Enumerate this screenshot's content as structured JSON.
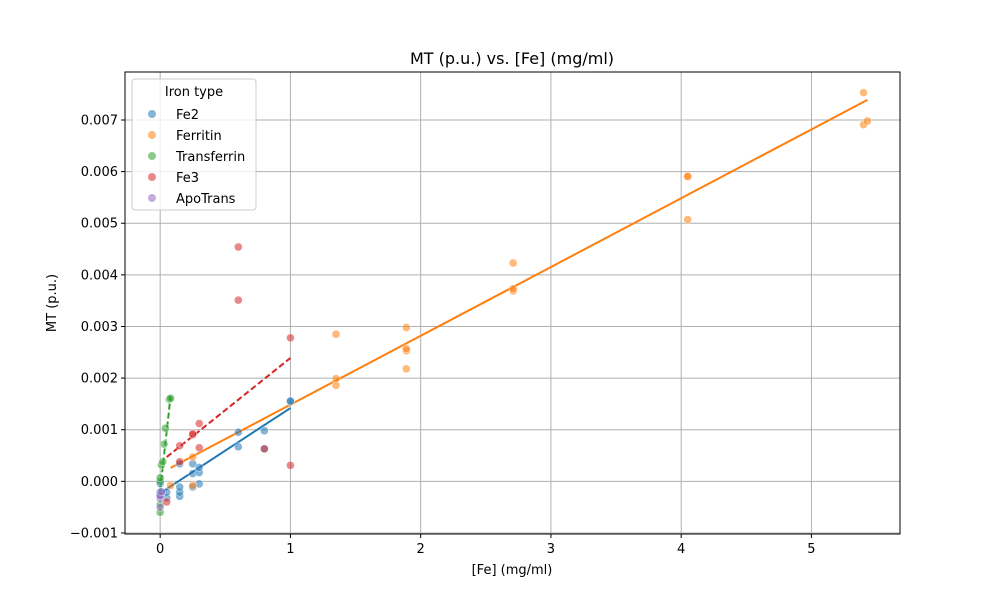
{
  "chart_data": {
    "type": "scatter",
    "title": "MT (p.u.) vs. [Fe] (mg/ml)",
    "xlabel": "[Fe] (mg/ml)",
    "ylabel": "MT (p.u.)",
    "xlim": [
      -0.27,
      5.68
    ],
    "ylim": [
      -0.00102,
      0.00793
    ],
    "xticks": [
      0,
      1,
      2,
      3,
      4,
      5
    ],
    "xtick_labels": [
      "0",
      "1",
      "2",
      "3",
      "4",
      "5"
    ],
    "yticks": [
      -0.001,
      0,
      0.001,
      0.002,
      0.003,
      0.004,
      0.005,
      0.006,
      0.007
    ],
    "ytick_labels": [
      "−0.001",
      "0.000",
      "0.001",
      "0.002",
      "0.003",
      "0.004",
      "0.005",
      "0.006",
      "0.007"
    ],
    "grid": true,
    "legend": {
      "title": "Iron type",
      "position": "top-left"
    },
    "series": [
      {
        "name": "Fe2",
        "color": "#1f77b4",
        "points": [
          [
            0,
            -0.00026
          ],
          [
            0,
            -0.00021
          ],
          [
            0,
            -4e-05
          ],
          [
            0.05,
            -0.00032
          ],
          [
            0.05,
            -0.00021
          ],
          [
            0.15,
            -0.00029
          ],
          [
            0.15,
            -0.00021
          ],
          [
            0.15,
            -0.00011
          ],
          [
            0.15,
            0.00034
          ],
          [
            0.25,
            -0.00011
          ],
          [
            0.25,
            0.00015
          ],
          [
            0.25,
            0.00034
          ],
          [
            0.3,
            -5e-05
          ],
          [
            0.3,
            0.00017
          ],
          [
            0.3,
            0.00027
          ],
          [
            0.6,
            0.00067
          ],
          [
            0.6,
            0.00095
          ],
          [
            0.8,
            0.00063
          ],
          [
            0.8,
            0.00098
          ],
          [
            1.0,
            0.00154
          ],
          [
            1.0,
            0.00156
          ]
        ],
        "fit": {
          "x": [
            0,
            1.0
          ],
          "y": [
            -0.00023,
            0.00142
          ],
          "dash": "solid"
        }
      },
      {
        "name": "Ferritin",
        "color": "#ff7f0e",
        "points": [
          [
            0.08,
            -8e-05
          ],
          [
            0.25,
            -8e-05
          ],
          [
            0.25,
            0.00047
          ],
          [
            1.35,
            0.00186
          ],
          [
            1.35,
            0.00199
          ],
          [
            1.35,
            0.00285
          ],
          [
            1.89,
            0.00218
          ],
          [
            1.89,
            0.00253
          ],
          [
            1.89,
            0.00257
          ],
          [
            1.89,
            0.00298
          ],
          [
            2.71,
            0.00369
          ],
          [
            2.71,
            0.00373
          ],
          [
            2.71,
            0.00423
          ],
          [
            4.05,
            0.00507
          ],
          [
            4.05,
            0.0059
          ],
          [
            4.05,
            0.00591
          ],
          [
            5.4,
            0.00691
          ],
          [
            5.4,
            0.00753
          ],
          [
            5.43,
            0.00698
          ]
        ],
        "fit": {
          "x": [
            0.08,
            5.43
          ],
          "y": [
            0.00026,
            0.00739
          ],
          "dash": "solid"
        }
      },
      {
        "name": "Transferrin",
        "color": "#2ca02c",
        "points": [
          [
            0,
            -0.0006
          ],
          [
            0,
            -0.00045
          ],
          [
            0,
            0
          ],
          [
            0,
            7e-05
          ],
          [
            0.01,
            0.00032
          ],
          [
            0.02,
            0.00038
          ],
          [
            0.03,
            0.00072
          ],
          [
            0.04,
            0.00103
          ],
          [
            0.07,
            0.00159
          ],
          [
            0.08,
            0.00161
          ]
        ],
        "fit": {
          "x": [
            0,
            0.08
          ],
          "y": [
            -0.00017,
            0.00165
          ],
          "dash": "dashed"
        }
      },
      {
        "name": "Fe3",
        "color": "#d62728",
        "points": [
          [
            0.05,
            -0.0004
          ],
          [
            0.15,
            0.00038
          ],
          [
            0.15,
            0.00069
          ],
          [
            0.25,
            0.0009
          ],
          [
            0.25,
            0.00092
          ],
          [
            0.3,
            0.00065
          ],
          [
            0.3,
            0.00112
          ],
          [
            0.6,
            0.00351
          ],
          [
            0.6,
            0.00454
          ],
          [
            0.8,
            0.00063
          ],
          [
            1.0,
            0.00031
          ],
          [
            1.0,
            0.00278
          ]
        ],
        "fit": {
          "x": [
            0.05,
            1.0
          ],
          "y": [
            0.00047,
            0.00239
          ],
          "dash": "dashed"
        }
      },
      {
        "name": "ApoTrans",
        "color": "#9467bd",
        "points": [
          [
            0,
            -0.0005
          ],
          [
            0,
            -0.00033
          ],
          [
            0,
            -0.00028
          ],
          [
            0.01,
            -0.0002
          ]
        ]
      }
    ]
  }
}
